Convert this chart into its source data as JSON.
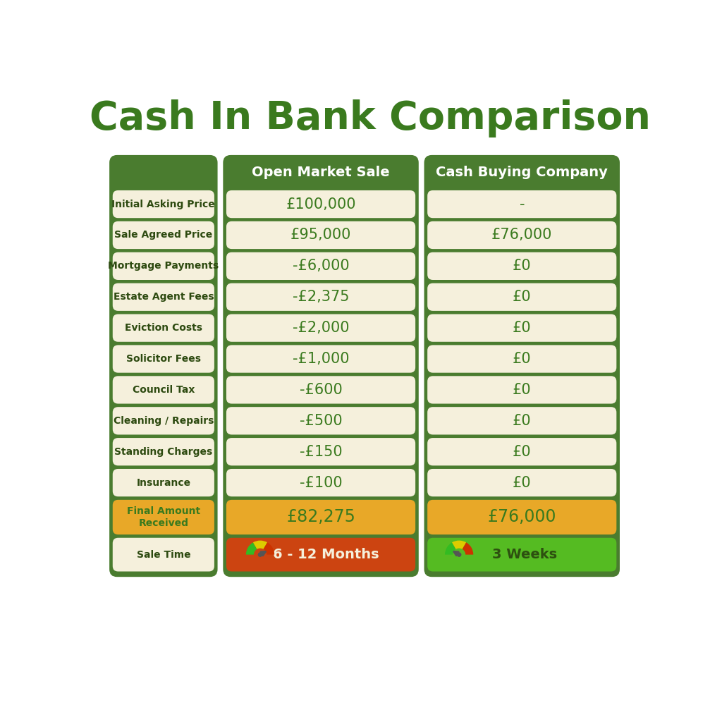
{
  "title": "Cash In Bank Comparison",
  "title_color": "#3a7a1e",
  "title_fontsize": 40,
  "bg_color": "#ffffff",
  "col_headers": [
    "Open Market Sale",
    "Cash Buying Company"
  ],
  "col_header_bg": "#4a7c2f",
  "col_header_color": "#ffffff",
  "row_labels": [
    "Initial Asking Price",
    "Sale Agreed Price",
    "Mortgage Payments",
    "Estate Agent Fees",
    "Eviction Costs",
    "Solicitor Fees",
    "Council Tax",
    "Cleaning / Repairs",
    "Standing Charges",
    "Insurance",
    "Final Amount\nReceived",
    "Sale Time"
  ],
  "col1_values": [
    "£100,000",
    "£95,000",
    "-£6,000",
    "-£2,375",
    "-£2,000",
    "-£1,000",
    "-£600",
    "-£500",
    "-£150",
    "-£100",
    "£82,275",
    "6 - 12 Months"
  ],
  "col2_values": [
    "-",
    "£76,000",
    "£0",
    "£0",
    "£0",
    "£0",
    "£0",
    "£0",
    "£0",
    "£0",
    "£76,000",
    "3 Weeks"
  ],
  "outer_col_bg": "#4a7c2f",
  "label_cell_bg": "#f5f0dc",
  "data_cell_bg": "#f5f0dc",
  "data_cell_color": "#3a7a1e",
  "label_text_color": "#2d4a10",
  "final_row_bg": "#e8a828",
  "final_row_text": "#3a7a1e",
  "sale_time_col1_bg": "#cc4411",
  "sale_time_col2_bg": "#55bb22",
  "sale_time_col1_text": "#f5f0dc",
  "sale_time_col2_text": "#2d5010",
  "gauge_green": "#33bb22",
  "gauge_yellow": "#ddcc00",
  "gauge_red": "#cc3300",
  "needle_color": "#555555"
}
